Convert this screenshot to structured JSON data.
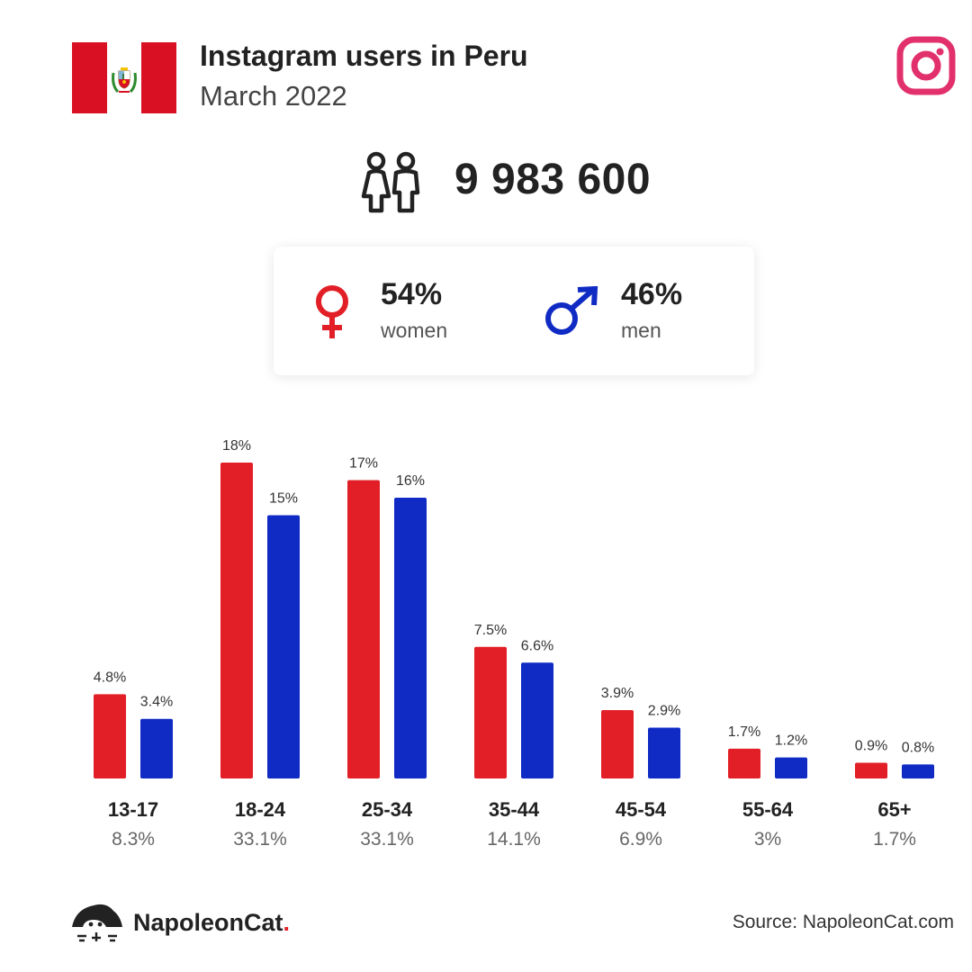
{
  "header": {
    "title": "Instagram users in Peru",
    "subtitle": "March 2022",
    "flag_colors": {
      "red": "#d91023",
      "white": "#ffffff"
    },
    "platform_icon": "instagram-icon",
    "platform_color": "#e1306c"
  },
  "total": {
    "icon": "people-icon",
    "value": "9 983 600"
  },
  "gender": {
    "women": {
      "percent": "54%",
      "label": "women",
      "icon": "female-symbol-icon",
      "color": "#e21f26"
    },
    "men": {
      "percent": "46%",
      "label": "men",
      "icon": "male-symbol-icon",
      "color": "#0f2bc4"
    }
  },
  "chart_data": {
    "type": "bar",
    "categories": [
      "13-17",
      "18-24",
      "25-34",
      "35-44",
      "45-54",
      "55-64",
      "65+"
    ],
    "category_totals": [
      "8.3%",
      "33.1%",
      "33.1%",
      "14.1%",
      "6.9%",
      "3%",
      "1.7%"
    ],
    "series": [
      {
        "values": [
          4.8,
          18,
          17,
          7.5,
          3.9,
          1.7,
          0.9
        ],
        "labels": [
          "4.8%",
          "18%",
          "17%",
          "7.5%",
          "3.9%",
          "1.7%",
          "0.9%"
        ],
        "color": "#e21f26"
      },
      {
        "values": [
          3.4,
          15,
          16,
          6.6,
          2.9,
          1.2,
          0.8
        ],
        "labels": [
          "3.4%",
          "15%",
          "16%",
          "6.6%",
          "2.9%",
          "1.2%",
          "0.8%"
        ],
        "color": "#0f2bc4"
      }
    ],
    "title": "",
    "xlabel": "",
    "ylabel": "",
    "ylim": [
      0,
      18
    ],
    "grid": false,
    "legend": "none"
  },
  "footer": {
    "brand_name": "NapoleonCat",
    "brand_dot": ".",
    "brand_icon": "napoleoncat-logo-icon",
    "source": "Source: NapoleonCat.com"
  }
}
